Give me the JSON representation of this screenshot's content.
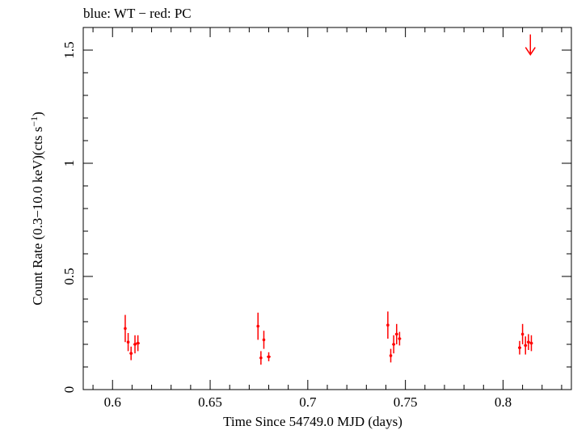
{
  "chart_data": {
    "type": "scatter",
    "title": "blue: WT − red: PC",
    "xlabel": "Time Since 54749.0 MJD (days)",
    "ylabel_main": "Count Rate (0.3−10.0 keV)(cts s",
    "ylabel_sup": "−1",
    "ylabel_close": ")",
    "xlim": [
      0.585,
      0.835
    ],
    "ylim": [
      0,
      1.6
    ],
    "x_ticks": [
      {
        "value": 0.6,
        "label": "0.6"
      },
      {
        "value": 0.65,
        "label": "0.65"
      },
      {
        "value": 0.7,
        "label": "0.7"
      },
      {
        "value": 0.75,
        "label": "0.75"
      },
      {
        "value": 0.8,
        "label": "0.8"
      }
    ],
    "x_minor_step": 0.01,
    "y_ticks": [
      {
        "value": 0,
        "label": "0"
      },
      {
        "value": 0.5,
        "label": "0.5"
      },
      {
        "value": 1,
        "label": "1"
      },
      {
        "value": 1.5,
        "label": "1.5"
      }
    ],
    "y_minor_step": 0.1,
    "series": [
      {
        "color": "#ff0000",
        "points": [
          {
            "x": 0.6065,
            "y": 0.27,
            "xerr": 0.0005,
            "yerr": 0.06
          },
          {
            "x": 0.608,
            "y": 0.21,
            "xerr": 0.0005,
            "yerr": 0.04
          },
          {
            "x": 0.6095,
            "y": 0.16,
            "xerr": 0.0008,
            "yerr": 0.03
          },
          {
            "x": 0.6115,
            "y": 0.2,
            "xerr": 0.0008,
            "yerr": 0.04
          },
          {
            "x": 0.613,
            "y": 0.205,
            "xerr": 0.001,
            "yerr": 0.035
          },
          {
            "x": 0.6745,
            "y": 0.28,
            "xerr": 0.0005,
            "yerr": 0.06
          },
          {
            "x": 0.676,
            "y": 0.14,
            "xerr": 0.0005,
            "yerr": 0.03
          },
          {
            "x": 0.6775,
            "y": 0.22,
            "xerr": 0.0005,
            "yerr": 0.04
          },
          {
            "x": 0.68,
            "y": 0.145,
            "xerr": 0.001,
            "yerr": 0.02
          },
          {
            "x": 0.741,
            "y": 0.285,
            "xerr": 0.0005,
            "yerr": 0.06
          },
          {
            "x": 0.7425,
            "y": 0.15,
            "xerr": 0.0005,
            "yerr": 0.03
          },
          {
            "x": 0.744,
            "y": 0.2,
            "xerr": 0.0008,
            "yerr": 0.04
          },
          {
            "x": 0.7455,
            "y": 0.245,
            "xerr": 0.0008,
            "yerr": 0.045
          },
          {
            "x": 0.747,
            "y": 0.225,
            "xerr": 0.0008,
            "yerr": 0.03
          },
          {
            "x": 0.8085,
            "y": 0.185,
            "xerr": 0.0008,
            "yerr": 0.03
          },
          {
            "x": 0.81,
            "y": 0.245,
            "xerr": 0.0005,
            "yerr": 0.045
          },
          {
            "x": 0.8115,
            "y": 0.195,
            "xerr": 0.0008,
            "yerr": 0.04
          },
          {
            "x": 0.813,
            "y": 0.21,
            "xerr": 0.0008,
            "yerr": 0.035
          },
          {
            "x": 0.8145,
            "y": 0.205,
            "xerr": 0.0008,
            "yerr": 0.035
          }
        ]
      }
    ],
    "upper_limits": [
      {
        "x": 0.814,
        "y": 1.48,
        "color": "#ff0000"
      }
    ],
    "grid": false,
    "legend": "none"
  }
}
